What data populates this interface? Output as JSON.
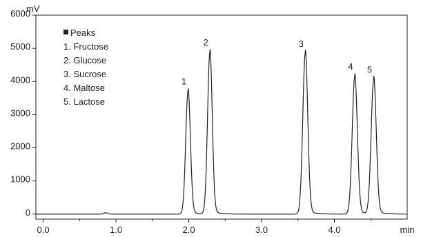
{
  "chart_data": {
    "type": "line",
    "xlabel": "min",
    "ylabel": "mV",
    "xlim": [
      -0.1,
      5.0
    ],
    "ylim": [
      -150,
      6000
    ],
    "xticks": [
      0.0,
      1.0,
      2.0,
      3.0,
      4.0
    ],
    "xtick_labels": [
      "0.0",
      "1.0",
      "2.0",
      "3.0",
      "4.0"
    ],
    "yticks": [
      0,
      1000,
      2000,
      3000,
      4000,
      5000,
      6000
    ],
    "ytick_labels": [
      "0",
      "1000",
      "2000",
      "3000",
      "4000",
      "5000",
      "6000"
    ],
    "grid": false,
    "legend_position": "top-left",
    "legend": {
      "title": "Peaks",
      "entries": [
        "1. Fructose",
        "2. Glucose",
        "3. Sucrose",
        "4. Maltose",
        "5. Lactose"
      ]
    },
    "baseline": 0,
    "minor_bump": {
      "x": 0.86,
      "y": 40
    },
    "peaks": [
      {
        "label": "1",
        "x": 1.99,
        "y": 3700,
        "sigma": 0.032
      },
      {
        "label": "2",
        "x": 2.29,
        "y": 4880,
        "sigma": 0.032
      },
      {
        "label": "3",
        "x": 3.6,
        "y": 4840,
        "sigma": 0.034
      },
      {
        "label": "4",
        "x": 4.28,
        "y": 4150,
        "sigma": 0.035
      },
      {
        "label": "5",
        "x": 4.54,
        "y": 4060,
        "sigma": 0.035
      }
    ]
  }
}
